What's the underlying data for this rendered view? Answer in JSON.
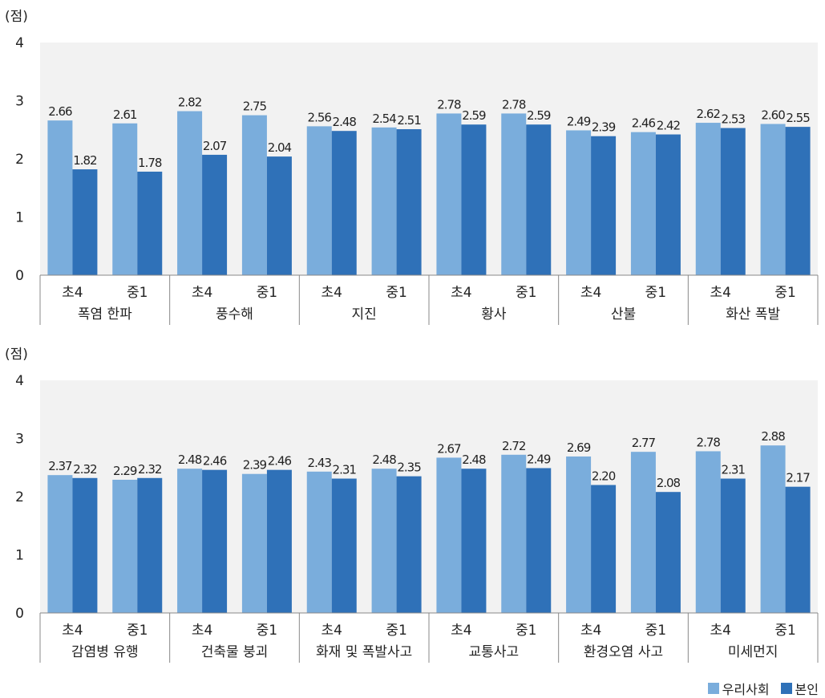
{
  "unit_label": "(점)",
  "colors": {
    "series_1": "#7aaddc",
    "series_2": "#2f71b8",
    "plot_bg": "#f2f2f2",
    "axis": "#888888"
  },
  "legend": [
    {
      "name": "우리사회",
      "color": "#7aaddc"
    },
    {
      "name": "본인",
      "color": "#2f71b8"
    }
  ],
  "chart_data": [
    {
      "type": "bar",
      "ylabel": "(점)",
      "ylim": [
        0,
        4
      ],
      "yticks": [
        0,
        1,
        2,
        3,
        4
      ],
      "groups": [
        "폭염 한파",
        "풍수해",
        "지진",
        "황사",
        "산불",
        "화산 폭발"
      ],
      "subcategories": [
        "초4",
        "중1"
      ],
      "series": [
        {
          "name": "우리사회",
          "values": [
            2.66,
            2.61,
            2.82,
            2.75,
            2.56,
            2.54,
            2.78,
            2.78,
            2.49,
            2.46,
            2.62,
            2.6
          ],
          "labels": [
            "2.66",
            "2.61",
            "2.82",
            "2.75",
            "2.56",
            "2.54",
            "2.78",
            "2.78",
            "2.49",
            "2.46",
            "2.62",
            "2.60"
          ]
        },
        {
          "name": "본인",
          "values": [
            1.82,
            1.78,
            2.07,
            2.04,
            2.48,
            2.51,
            2.59,
            2.59,
            2.39,
            2.42,
            2.53,
            2.55
          ],
          "labels": [
            "1.82",
            "1.78",
            "2.07",
            "2.04",
            "2.48",
            "2.51",
            "2.59",
            "2.59",
            "2.39",
            "2.42",
            "2.53",
            "2.55"
          ]
        }
      ]
    },
    {
      "type": "bar",
      "ylabel": "(점)",
      "ylim": [
        0,
        4
      ],
      "yticks": [
        0,
        1,
        2,
        3,
        4
      ],
      "groups": [
        "감염병 유행",
        "건축물 붕괴",
        "화재 및 폭발사고",
        "교통사고",
        "환경오염 사고",
        "미세먼지"
      ],
      "subcategories": [
        "초4",
        "중1"
      ],
      "series": [
        {
          "name": "우리사회",
          "values": [
            2.37,
            2.29,
            2.48,
            2.39,
            2.43,
            2.48,
            2.67,
            2.72,
            2.69,
            2.77,
            2.78,
            2.88
          ],
          "labels": [
            "2.37",
            "2.29",
            "2.48",
            "2.39",
            "2.43",
            "2.48",
            "2.67",
            "2.72",
            "2.69",
            "2.77",
            "2.78",
            "2.88"
          ]
        },
        {
          "name": "본인",
          "values": [
            2.32,
            2.32,
            2.46,
            2.46,
            2.31,
            2.35,
            2.48,
            2.49,
            2.2,
            2.08,
            2.31,
            2.17
          ],
          "labels": [
            "2.32",
            "2.32",
            "2.46",
            "2.46",
            "2.31",
            "2.35",
            "2.48",
            "2.49",
            "2.20",
            "2.08",
            "2.31",
            "2.17"
          ]
        }
      ]
    }
  ]
}
